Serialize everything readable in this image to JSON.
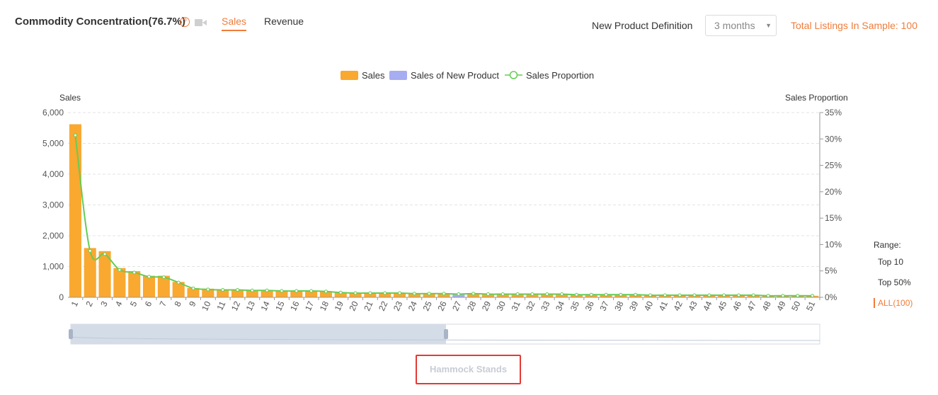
{
  "header": {
    "title": "Commodity Concentration(76.7%)",
    "tabs": [
      {
        "label": "Sales",
        "active": true
      },
      {
        "label": "Revenue",
        "active": false
      }
    ],
    "new_product_label": "New Product Definition",
    "new_product_value": "3 months",
    "total_listings": "Total Listings In Sample: 100"
  },
  "range": {
    "label": "Range:",
    "options": [
      "Top 10",
      "Top 50%",
      "ALL(100)"
    ],
    "selected": "ALL(100)"
  },
  "category_label": "Hammock Stands",
  "colors": {
    "sales": "#f9a830",
    "new_product": "#a7adf1",
    "proportion": "#66cc55",
    "accent": "#f07c3a"
  },
  "icons": [
    "help-icon",
    "video-icon",
    "caret-down-icon"
  ],
  "chart_data": {
    "type": "bar",
    "legend": [
      "Sales",
      "Sales of New Product",
      "Sales Proportion"
    ],
    "legend_position": "top-center",
    "ylabel": "Sales",
    "y2label": "Sales Proportion",
    "ylim": [
      0,
      6000
    ],
    "y2lim": [
      0,
      35
    ],
    "yticks": [
      "0",
      "1,000",
      "2,000",
      "3,000",
      "4,000",
      "5,000",
      "6,000"
    ],
    "y2ticks": [
      "0%",
      "5%",
      "10%",
      "15%",
      "20%",
      "25%",
      "30%",
      "35%"
    ],
    "grid": true,
    "categories": [
      "1",
      "2",
      "3",
      "4",
      "5",
      "6",
      "7",
      "8",
      "9",
      "10",
      "11",
      "12",
      "13",
      "14",
      "15",
      "16",
      "17",
      "18",
      "19",
      "20",
      "21",
      "22",
      "23",
      "24",
      "25",
      "26",
      "27",
      "28",
      "29",
      "30",
      "31",
      "32",
      "33",
      "34",
      "35",
      "36",
      "37",
      "38",
      "39",
      "40",
      "41",
      "42",
      "43",
      "44",
      "45",
      "46",
      "47",
      "48",
      "49",
      "50",
      "51"
    ],
    "series": [
      {
        "name": "Sales",
        "type": "bar",
        "values": [
          5620,
          1600,
          1500,
          950,
          850,
          700,
          700,
          500,
          300,
          280,
          260,
          250,
          240,
          230,
          220,
          220,
          210,
          200,
          170,
          150,
          150,
          140,
          140,
          130,
          130,
          120,
          0,
          120,
          110,
          110,
          110,
          105,
          100,
          100,
          95,
          95,
          90,
          90,
          85,
          80,
          80,
          80,
          75,
          70,
          70,
          65,
          65,
          60,
          60,
          55,
          50
        ]
      },
      {
        "name": "Sales of New Product",
        "type": "bar",
        "values": [
          0,
          0,
          0,
          0,
          0,
          0,
          0,
          0,
          0,
          0,
          0,
          0,
          0,
          0,
          0,
          0,
          0,
          0,
          0,
          0,
          0,
          0,
          0,
          0,
          0,
          0,
          110,
          0,
          0,
          0,
          0,
          0,
          0,
          0,
          0,
          0,
          0,
          0,
          0,
          0,
          0,
          0,
          0,
          0,
          0,
          0,
          0,
          0,
          0,
          0,
          0
        ]
      },
      {
        "name": "Sales Proportion",
        "type": "line",
        "axis": "right",
        "values": [
          30.7,
          8.8,
          8.2,
          5.2,
          4.7,
          3.9,
          3.8,
          2.8,
          1.7,
          1.5,
          1.4,
          1.4,
          1.3,
          1.3,
          1.2,
          1.2,
          1.2,
          1.1,
          0.9,
          0.8,
          0.8,
          0.8,
          0.8,
          0.7,
          0.7,
          0.7,
          0.6,
          0.7,
          0.6,
          0.6,
          0.6,
          0.6,
          0.6,
          0.6,
          0.5,
          0.5,
          0.5,
          0.5,
          0.5,
          0.4,
          0.4,
          0.4,
          0.4,
          0.4,
          0.4,
          0.4,
          0.4,
          0.3,
          0.3,
          0.3,
          0.3
        ]
      }
    ]
  }
}
